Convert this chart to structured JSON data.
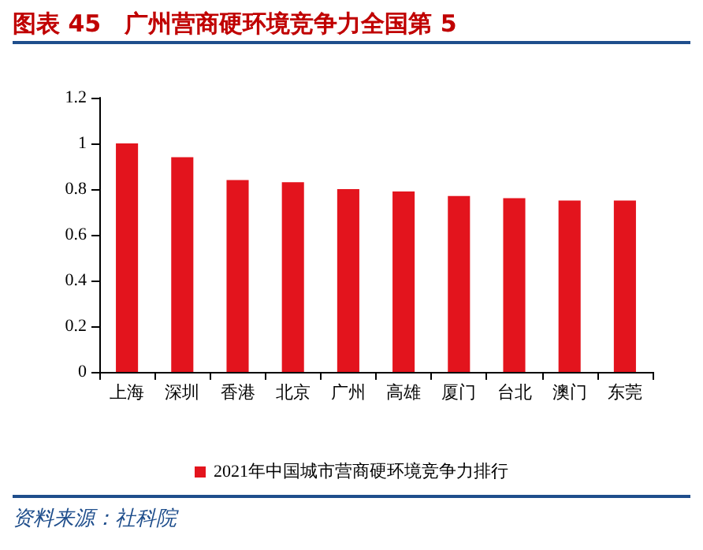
{
  "chart_data": {
    "type": "bar",
    "title": "图表 45　广州营商硬环境竞争力全国第 5",
    "categories": [
      "上海",
      "深圳",
      "香港",
      "北京",
      "广州",
      "高雄",
      "厦门",
      "台北",
      "澳门",
      "东莞"
    ],
    "series": [
      {
        "name": "2021年中国城市营商硬环境竞争力排行",
        "color": "#e3141d",
        "values": [
          1.0,
          0.94,
          0.84,
          0.83,
          0.8,
          0.79,
          0.77,
          0.76,
          0.75,
          0.75
        ]
      }
    ],
    "ylim": [
      0,
      1.2
    ],
    "yticks": [
      0,
      0.2,
      0.4,
      0.6,
      0.8,
      1,
      1.2
    ],
    "grid": false,
    "legend": "bottom",
    "annotations": [
      "资料来源：社科院"
    ]
  }
}
